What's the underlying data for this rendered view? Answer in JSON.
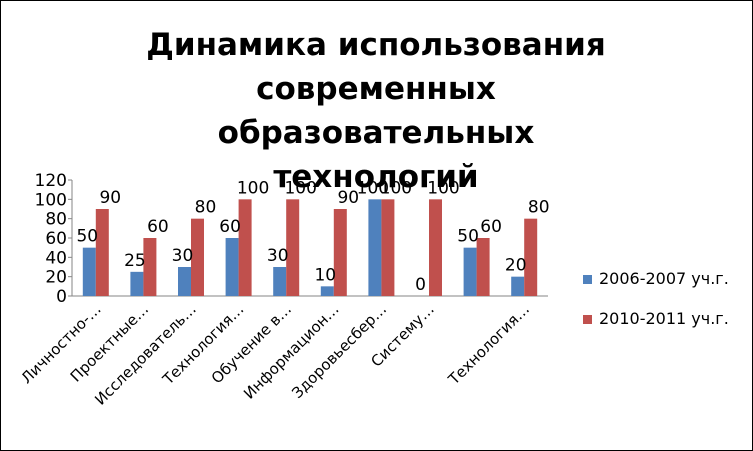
{
  "chart_data": {
    "type": "bar",
    "title": "Динамика использования современных образовательных технологий",
    "title_lines": [
      "Динамика использования",
      "современных образовательных",
      "технологий"
    ],
    "categories": [
      "Личностно-…",
      "Проектные…",
      "Исследователь…",
      "Технология…",
      "Обучение в…",
      "Информацион…",
      "Здоровьесбер…",
      "Систему…",
      "",
      "Технология…"
    ],
    "series": [
      {
        "name": "2006-2007 уч.г.",
        "color": "#4F81BD",
        "values": [
          50,
          25,
          30,
          60,
          30,
          10,
          100,
          0,
          50,
          20
        ]
      },
      {
        "name": "2010-2011 уч.г.",
        "color": "#C0504D",
        "values": [
          90,
          60,
          80,
          100,
          100,
          90,
          100,
          100,
          60,
          80
        ]
      }
    ],
    "yticks": [
      0,
      20,
      40,
      60,
      80,
      100,
      120
    ],
    "ylim": [
      0,
      120
    ],
    "legend_position": "right",
    "grid": false,
    "data_labels": true
  }
}
